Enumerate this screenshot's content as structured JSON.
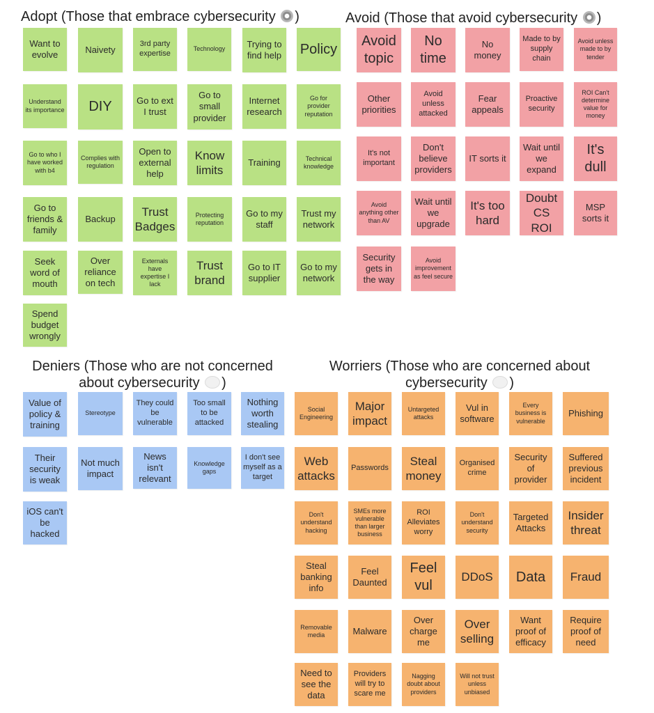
{
  "colors": {
    "adopt": "#b9e184",
    "avoid": "#f2a1a5",
    "deniers": "#a9c8f4",
    "worriers": "#f6b36f"
  },
  "adopt": {
    "title": "Adopt (Those that embrace cybersecurity",
    "close": ")",
    "icon": "gear-icon",
    "notes": [
      "Want to evolve",
      "Naivety",
      "3rd party expertise",
      "Technology",
      "Trying to find help",
      "Policy",
      "Understand its importance",
      "DIY",
      "Go to ext I trust",
      "Go to small provider",
      "Internet research",
      "Go for provider reputation",
      "Go to who I have worked with b4",
      "Complies with regulation",
      "Open to external help",
      "Know limits",
      "Training",
      "Technical knowledge",
      "Go to friends & family",
      "Backup",
      "Trust Badges",
      "Protecting reputation",
      "Go to my staff",
      "Trust my network",
      "Seek word of mouth",
      "Over reliance on tech",
      "Externals have expertise I lack",
      "Trust brand",
      "Go to IT supplier",
      "Go to my network",
      "Spend budget wrongly"
    ]
  },
  "avoid": {
    "title": "Avoid (Those that avoid cybersecurity",
    "close": ")",
    "icon": "gear-icon",
    "notes": [
      "Avoid topic",
      "No time",
      "No money",
      "Made to by supply chain",
      "Avoid unless made to by tender",
      "Other priorities",
      "Avoid unless attacked",
      "Fear appeals",
      "Proactive security",
      "ROI Can't determine value for money",
      "It's not important",
      "Don't believe providers",
      "IT sorts it",
      "Wait until we expand",
      "It's dull",
      "Avoid anything other than AV",
      "Wait until we upgrade",
      "It's too hard",
      "Doubt CS ROI",
      "MSP sorts it",
      "Security gets in the way",
      "Avoid improvement as feel secure"
    ]
  },
  "deniers": {
    "title_line1": "Deniers (Those who are not concerned",
    "title_line2": "about cybersecurity",
    "close": ")",
    "icon": "speech-bubble-icon",
    "notes": [
      "Value of policy & training",
      "Stereotype",
      "They could be vulnerable",
      "Too small to be attacked",
      "Nothing worth stealing",
      "Their security is weak",
      "Not much impact",
      "News isn't relevant",
      "Knowledge gaps",
      "I don't see myself as a target",
      "iOS can't be hacked"
    ]
  },
  "worriers": {
    "title_line1": "Worriers (Those who are concerned about",
    "title_line2": "cybersecurity",
    "close": ")",
    "icon": "speech-bubble-icon",
    "notes": [
      "Social Engineering",
      "Major impact",
      "Untargeted attacks",
      "Vul in software",
      "Every business is vulnerable",
      "Phishing",
      "Web attacks",
      "Passwords",
      "Steal money",
      "Organised crime",
      "Security of provider",
      "Suffered previous incident",
      "Don't understand hacking",
      "SMEs more vulnerable than larger business",
      "ROI Alleviates worry",
      "Don't understand security",
      "Targeted Attacks",
      "Insider threat",
      "Steal banking info",
      "Feel Daunted",
      "Feel vul",
      "DDoS",
      "Data",
      "Fraud",
      "Removable media",
      "Malware",
      "Over charge me",
      "Over selling",
      "Want proof of efficacy",
      "Require proof of need",
      "Need to see the data",
      "Providers will try to scare me",
      "Nagging doubt about providers",
      "Will not trust unless unbiased"
    ]
  }
}
